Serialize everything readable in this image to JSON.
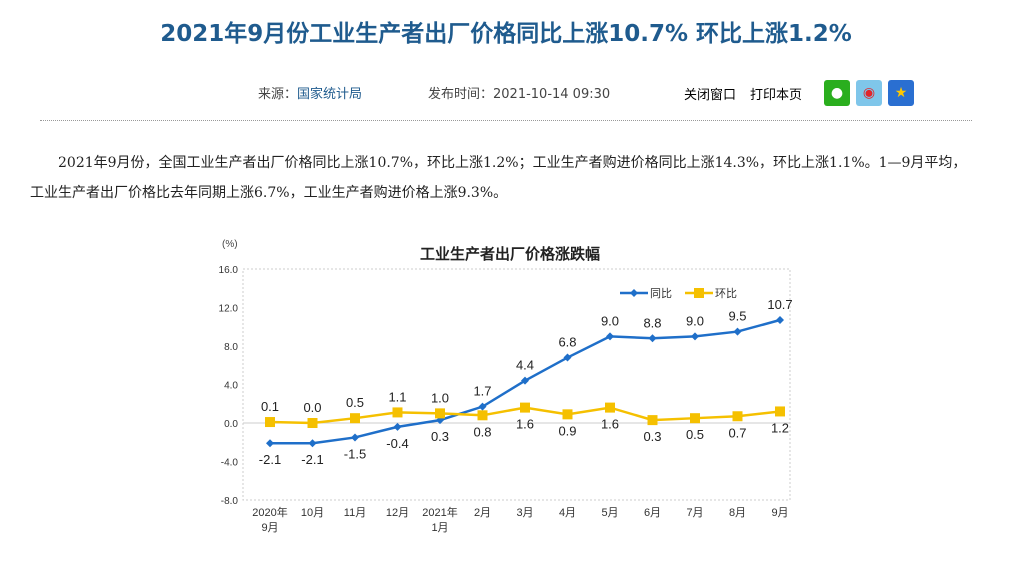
{
  "title": "2021年9月份工业生产者出厂价格同比上涨10.7% 环比上涨1.2%",
  "meta": {
    "source_label": "来源：",
    "source_value": "国家统计局",
    "time_label": "发布时间：2021-10-14 09:30"
  },
  "actions": {
    "close": "关闭窗口",
    "print": "打印本页"
  },
  "share": [
    {
      "icon": "wechat-icon",
      "color": "#2aae1e"
    },
    {
      "icon": "weibo-icon",
      "color": "#7fc6ea"
    },
    {
      "icon": "qzone-icon",
      "color": "#2a6fd1"
    }
  ],
  "paragraph": "2021年9月份，全国工业生产者出厂价格同比上涨10.7%，环比上涨1.2%；工业生产者购进价格同比上涨14.3%，环比上涨1.1%。1—9月平均，工业生产者出厂价格比去年同期上涨6.7%，工业生产者购进价格上涨9.3%。",
  "chart_data": {
    "type": "line",
    "title": "工业生产者出厂价格涨跌幅",
    "ylabel": "(%)",
    "ylim": [
      -8,
      16
    ],
    "yticks": [
      "16.0",
      "12.0",
      "8.0",
      "4.0",
      "0.0",
      "-4.0",
      "-8.0"
    ],
    "categories": [
      [
        "2020年",
        "9月"
      ],
      [
        "10月"
      ],
      [
        "11月"
      ],
      [
        "12月"
      ],
      [
        "2021年",
        "1月"
      ],
      [
        "2月"
      ],
      [
        "3月"
      ],
      [
        "4月"
      ],
      [
        "5月"
      ],
      [
        "6月"
      ],
      [
        "7月"
      ],
      [
        "8月"
      ],
      [
        "9月"
      ]
    ],
    "legend": "top-right",
    "series": [
      {
        "name": "同比",
        "color": "#1f6fc9",
        "marker": "diamond",
        "values": [
          -2.1,
          -2.1,
          -1.5,
          -0.4,
          0.3,
          1.7,
          4.4,
          6.8,
          9.0,
          8.8,
          9.0,
          9.5,
          10.7
        ]
      },
      {
        "name": "环比",
        "color": "#f5c000",
        "marker": "square",
        "values": [
          0.1,
          0.0,
          0.5,
          1.1,
          1.0,
          0.8,
          1.6,
          0.9,
          1.6,
          0.3,
          0.5,
          0.7,
          1.2
        ]
      }
    ]
  }
}
